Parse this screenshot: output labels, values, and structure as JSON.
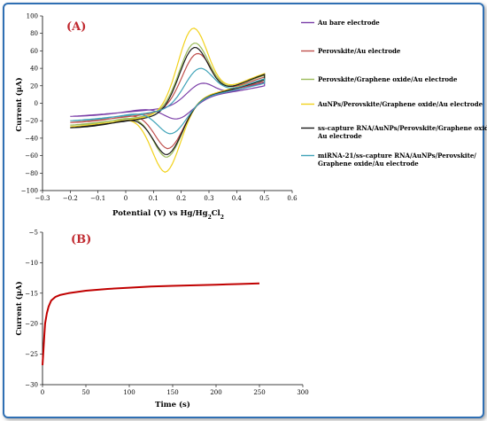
{
  "chart_data": [
    {
      "type": "line",
      "panel_label": "(A)",
      "xlabel": "Potential (V) vs Hg/Hg2Cl2",
      "xlabel_parts": {
        "pre": "Potential (V) vs Hg/Hg",
        "sub1": "2",
        "mid": "Cl",
        "sub2": "2"
      },
      "ylabel": "Current (μA)",
      "xlim": [
        -0.3,
        0.6
      ],
      "ylim": [
        -100,
        100
      ],
      "xticks": [
        "−0.3",
        "−0.2",
        "−0.1",
        "0",
        "0.1",
        "0.2",
        "0.3",
        "0.4",
        "0.5",
        "0.6"
      ],
      "yticks": [
        "100",
        "80",
        "60",
        "40",
        "20",
        "0",
        "−20",
        "−40",
        "−60",
        "−80",
        "−100"
      ],
      "legend_position": "right",
      "grid": false,
      "series": [
        {
          "name": "Au bare electrode",
          "color": "#7b3fa8",
          "ipa": 23,
          "ipc": -18,
          "epa": 0.28,
          "epc": 0.18,
          "start": -15,
          "end_top": 24,
          "end_bot": 20
        },
        {
          "name": "Perovskite/Au electrode",
          "color": "#c0504d",
          "ipa": 57,
          "ipc": -52,
          "epa": 0.26,
          "epc": 0.15,
          "start": -22,
          "end_top": 30,
          "end_bot": 25
        },
        {
          "name": "Perovskite/Graphene oxide/Au electrode",
          "color": "#9bbb59",
          "ipa": 69,
          "ipc": -62,
          "epa": 0.25,
          "epc": 0.145,
          "start": -25,
          "end_top": 32,
          "end_bot": 27
        },
        {
          "name": "AuNPs/Perovskite/Graphene oxide/Au electrode",
          "color": "#f2d21b",
          "ipa": 86,
          "ipc": -79,
          "epa": 0.245,
          "epc": 0.14,
          "start": -27,
          "end_top": 34,
          "end_bot": 28
        },
        {
          "name": "ss-capture RNA/AuNPs/Perovskite/Graphene oxide/Au electrode",
          "color": "#1a1a1a",
          "ipa": 64,
          "ipc": -59,
          "epa": 0.25,
          "epc": 0.145,
          "start": -28,
          "end_top": 33,
          "end_bot": 27
        },
        {
          "name": "miRNA-21/ss-capture RNA/AuNPs/Perovskite/Graphene oxide/Au electrode",
          "color": "#3fa3b8",
          "ipa": 40,
          "ipc": -35,
          "epa": 0.27,
          "epc": 0.16,
          "start": -20,
          "end_top": 28,
          "end_bot": 23
        }
      ]
    },
    {
      "type": "line",
      "panel_label": "(B)",
      "xlabel": "Time (s)",
      "ylabel": "Current (μA)",
      "xlim": [
        0,
        300
      ],
      "ylim": [
        -30,
        -5
      ],
      "xticks": [
        "0",
        "50",
        "100",
        "150",
        "200",
        "250",
        "300"
      ],
      "yticks": [
        "−5",
        "−10",
        "−15",
        "−20",
        "−25",
        "−30"
      ],
      "grid": false,
      "series": [
        {
          "color": "#c00000",
          "x": [
            0,
            1,
            2,
            3,
            5,
            7,
            10,
            15,
            20,
            30,
            40,
            50,
            75,
            100,
            125,
            150,
            175,
            200,
            225,
            250
          ],
          "y": [
            -26.8,
            -24.5,
            -22.0,
            -20.0,
            -18.3,
            -17.2,
            -16.2,
            -15.6,
            -15.3,
            -15.0,
            -14.8,
            -14.6,
            -14.3,
            -14.1,
            -13.9,
            -13.8,
            -13.7,
            -13.6,
            -13.5,
            -13.4
          ]
        }
      ]
    }
  ]
}
